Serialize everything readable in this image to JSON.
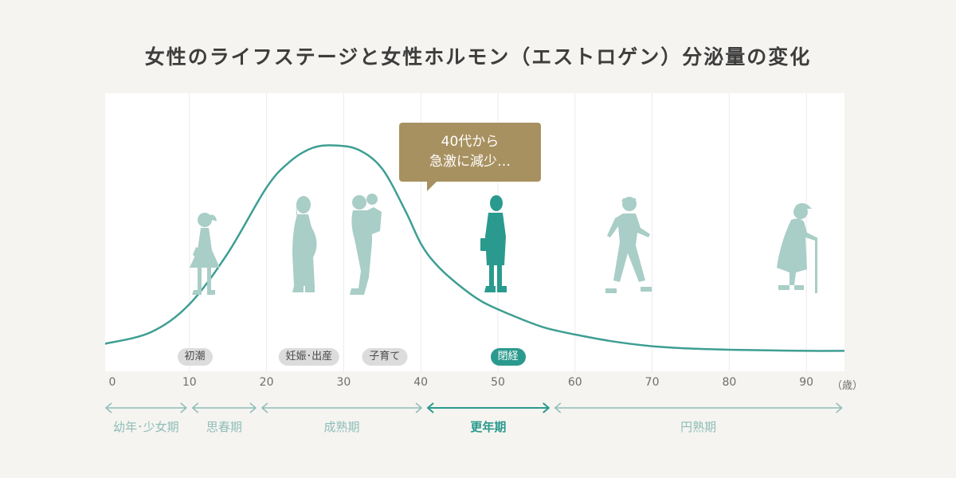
{
  "title": "女性のライフステージと女性ホルモン（エストロゲン）分泌量の変化",
  "callout": {
    "line1": "40代から",
    "line2": "急激に減少…",
    "color": "#a89160"
  },
  "colors": {
    "curve": "#3e9e93",
    "figure_light": "#a9cdc7",
    "figure_active": "#2a9a8e",
    "stage_light": "#8fbdb8",
    "stage_active": "#2a9a8e",
    "background": "#f5f4f0",
    "plot_background": "#ffffff"
  },
  "events": [
    {
      "label": "初潮",
      "age": 10.7,
      "active": false
    },
    {
      "label": "妊娠･出産",
      "age": 25.5,
      "active": false
    },
    {
      "label": "子育て",
      "age": 35.3,
      "active": false
    },
    {
      "label": "閉経",
      "age": 51.3,
      "active": true
    }
  ],
  "stages": [
    {
      "label": "幼年･少女期",
      "from": 0,
      "to": 10,
      "active": false
    },
    {
      "label": "思春期",
      "from": 10,
      "to": 19,
      "active": false
    },
    {
      "label": "成熟期",
      "from": 19,
      "to": 40.5,
      "active": false
    },
    {
      "label": "更年期",
      "from": 40.5,
      "to": 57,
      "active": true
    },
    {
      "label": "円熟期",
      "from": 57,
      "to": 95,
      "active": false
    }
  ],
  "figures": [
    {
      "icon": "girl-figure-icon",
      "age": 12,
      "active": false
    },
    {
      "icon": "pregnant-woman-figure-icon",
      "age": 25,
      "active": false
    },
    {
      "icon": "mother-with-child-figure-icon",
      "age": 33,
      "active": false
    },
    {
      "icon": "businesswoman-figure-icon",
      "age": 50,
      "active": true
    },
    {
      "icon": "walking-man-figure-icon",
      "age": 67,
      "active": false
    },
    {
      "icon": "elderly-woman-with-cane-figure-icon",
      "age": 89,
      "active": false
    }
  ],
  "chart_data": {
    "type": "line",
    "title": "女性のライフステージと女性ホルモン（エストロゲン）分泌量の変化",
    "xlabel": "（歳）",
    "ylabel": "",
    "xlim": [
      -1,
      95
    ],
    "ylim": [
      0,
      100
    ],
    "x_ticks": [
      0,
      10,
      20,
      30,
      40,
      50,
      60,
      70,
      80,
      90
    ],
    "tick_labels": [
      "0",
      "10",
      "20",
      "30",
      "40",
      "50",
      "60",
      "70",
      "80",
      "90"
    ],
    "unit_label": "（歳）",
    "grid": "vertical",
    "series": [
      {
        "x": [
          -1,
          5,
          10,
          15,
          20,
          23,
          26,
          29,
          32,
          35,
          38,
          40,
          42,
          45,
          48,
          52,
          56,
          60,
          65,
          70,
          75,
          80,
          85,
          90,
          95
        ],
        "values": [
          9,
          14,
          26,
          48,
          76,
          87,
          93,
          94,
          92,
          84,
          66,
          52,
          43,
          34,
          27,
          21,
          16,
          13,
          10,
          8,
          7,
          6.5,
          6.2,
          6,
          6
        ]
      }
    ]
  }
}
